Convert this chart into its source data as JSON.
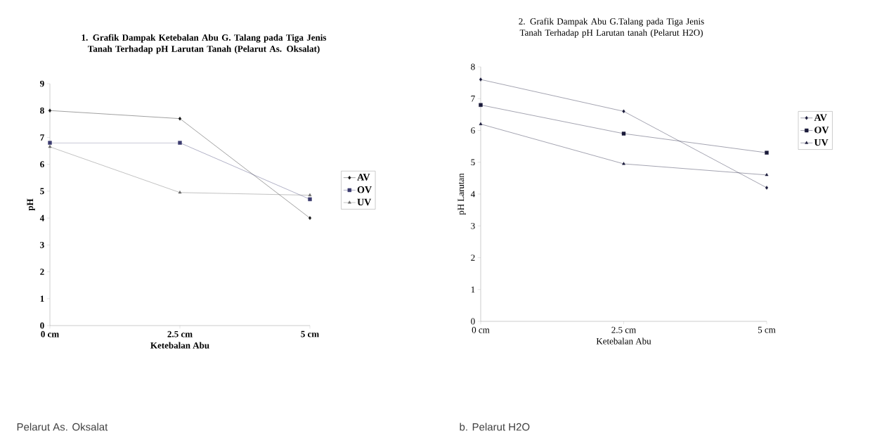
{
  "chart_data": [
    {
      "type": "line",
      "title": "1. Grafik Dampak  Ketebalan Abu G. Talang pada Tiga Jenis Tanah Terhadap pH Larutan Tanah (Pelarut As. Oksalat)",
      "xlabel": "Ketebalan Abu",
      "ylabel": "pH",
      "categories": [
        "0 cm",
        "2.5 cm",
        "5 cm"
      ],
      "ylim": [
        0,
        9
      ],
      "yticks": [
        0,
        1,
        2,
        3,
        4,
        5,
        6,
        7,
        8,
        9
      ],
      "legend": "right",
      "grid": false,
      "line_style": "solid",
      "annotations": [
        "Pelarut As. Oksalat"
      ],
      "series": [
        {
          "name": "AV",
          "color": "#111111",
          "marker": "diamond",
          "values": [
            8.0,
            7.7,
            4.0
          ]
        },
        {
          "name": "OV",
          "color": "#3a3a6e",
          "marker": "square",
          "values": [
            6.8,
            6.8,
            4.7
          ]
        },
        {
          "name": "UV",
          "color": "#666666",
          "marker": "triangle",
          "values": [
            6.65,
            4.95,
            4.85
          ]
        }
      ]
    },
    {
      "type": "line",
      "title": "2. Grafik Dampak Abu G.Talang pada Tiga Jenis Tanah Terhadap pH Larutan tanah (Pelarut H2O)",
      "xlabel": "Ketebalan Abu",
      "ylabel": "pH Larutan",
      "categories": [
        "0 cm",
        "2.5 cm",
        "5 cm"
      ],
      "ylim": [
        0,
        8
      ],
      "yticks": [
        0,
        1,
        2,
        3,
        4,
        5,
        6,
        7,
        8
      ],
      "legend": "right",
      "grid": false,
      "line_style": "solid",
      "annotations": [
        "b. Pelarut H2O"
      ],
      "series": [
        {
          "name": "AV",
          "color": "#1a1a3a",
          "marker": "diamond",
          "values": [
            7.6,
            6.6,
            4.2
          ]
        },
        {
          "name": "OV",
          "color": "#1a1a3a",
          "marker": "square",
          "values": [
            6.8,
            5.9,
            5.3
          ]
        },
        {
          "name": "UV",
          "color": "#1a1a3a",
          "marker": "triangle",
          "values": [
            6.2,
            4.95,
            4.6
          ]
        }
      ]
    }
  ]
}
